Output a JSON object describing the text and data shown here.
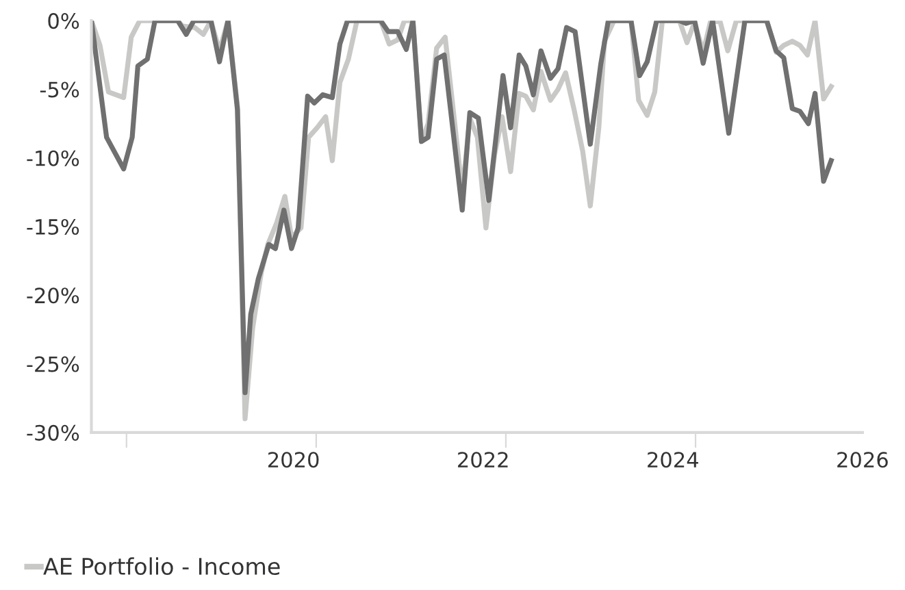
{
  "chart_data": {
    "type": "line",
    "series": [
      {
        "name": "AE Portfolio - Income",
        "color": "#c8c8c6",
        "x": [
          2017.87,
          2017.96,
          2018.05,
          2018.21,
          2018.29,
          2018.38,
          2018.78,
          2018.83,
          2018.96,
          2019.05,
          2019.13,
          2019.22,
          2019.31,
          2019.41,
          2019.49,
          2019.57,
          2019.66,
          2019.73,
          2019.82,
          2019.91,
          2019.98,
          2020.08,
          2020.16,
          2020.25,
          2020.34,
          2020.41,
          2020.49,
          2020.58,
          2020.67,
          2020.92,
          2021.01,
          2021.1,
          2021.17,
          2021.26,
          2021.35,
          2021.42,
          2021.51,
          2021.6,
          2021.69,
          2021.78,
          2021.86,
          2021.94,
          2022.03,
          2022.12,
          2022.2,
          2022.29,
          2022.38,
          2022.45,
          2022.53,
          2022.61,
          2022.71,
          2022.79,
          2022.87,
          2022.96,
          2023.05,
          2023.13,
          2023.22,
          2023.28,
          2023.38,
          2023.56,
          2023.64,
          2023.73,
          2023.81,
          2023.89,
          2024.07,
          2024.15,
          2024.23,
          2024.32,
          2024.4,
          2024.5,
          2024.58,
          2024.67,
          2024.99,
          2025.09,
          2025.17,
          2025.26,
          2025.34,
          2025.42,
          2025.5,
          2025.59,
          2025.67
        ],
        "values": [
          0,
          -1.8,
          -5.2,
          -5.6,
          -1.2,
          0,
          0,
          -0.4,
          -0.5,
          -1.0,
          0,
          -2.2,
          0,
          -6.2,
          -29.0,
          -22.4,
          -18.4,
          -16.3,
          -14.8,
          -12.8,
          -15.8,
          -15.1,
          -8.5,
          -7.8,
          -7.0,
          -10.2,
          -4.5,
          -2.8,
          0,
          0,
          -1.7,
          -1.4,
          0,
          0,
          -8.8,
          -7.5,
          -2.0,
          -1.2,
          -6.8,
          -12.5,
          -7.1,
          -8.5,
          -15.1,
          -9.8,
          -7.0,
          -11.0,
          -5.3,
          -5.5,
          -6.5,
          -3.7,
          -5.8,
          -5.0,
          -3.8,
          -6.5,
          -9.5,
          -13.5,
          -7.8,
          -1.5,
          0,
          0,
          -5.8,
          -6.9,
          -5.2,
          0,
          0,
          -1.6,
          -0.1,
          -2.3,
          0,
          -0.1,
          -2.2,
          0,
          0,
          -2.3,
          -1.8,
          -1.5,
          -1.8,
          -2.5,
          0,
          -5.7,
          -4.8
        ]
      },
      {
        "color": "#707070",
        "x": [
          2017.87,
          2018.03,
          2018.21,
          2018.3,
          2018.36,
          2018.46,
          2018.54,
          2018.78,
          2018.87,
          2018.95,
          2019.13,
          2019.22,
          2019.31,
          2019.41,
          2019.49,
          2019.55,
          2019.63,
          2019.74,
          2019.81,
          2019.9,
          2019.98,
          2020.05,
          2020.15,
          2020.22,
          2020.31,
          2020.41,
          2020.49,
          2020.57,
          2020.92,
          2021.0,
          2021.1,
          2021.19,
          2021.26,
          2021.35,
          2021.42,
          2021.51,
          2021.59,
          2021.78,
          2021.86,
          2021.95,
          2022.06,
          2022.21,
          2022.29,
          2022.38,
          2022.45,
          2022.53,
          2022.61,
          2022.71,
          2022.79,
          2022.88,
          2022.97,
          2023.13,
          2023.24,
          2023.32,
          2023.56,
          2023.65,
          2023.73,
          2023.83,
          2024.07,
          2024.14,
          2024.23,
          2024.32,
          2024.42,
          2024.59,
          2024.76,
          2024.99,
          2025.09,
          2025.17,
          2025.26,
          2025.34,
          2025.43,
          2025.5,
          2025.59,
          2025.67
        ],
        "values": [
          0,
          -8.5,
          -10.8,
          -8.5,
          -3.3,
          -2.8,
          0,
          0,
          -1.0,
          0,
          0,
          -3.0,
          0,
          -6.5,
          -27.1,
          -21.4,
          -18.8,
          -16.3,
          -16.6,
          -13.8,
          -16.6,
          -15.1,
          -5.5,
          -6.0,
          -5.4,
          -5.6,
          -1.7,
          0,
          0,
          -0.8,
          -0.8,
          -2.1,
          0,
          -8.8,
          -8.5,
          -2.8,
          -2.5,
          -13.8,
          -6.7,
          -7.1,
          -13.1,
          -4.0,
          -7.8,
          -2.5,
          -3.3,
          -5.4,
          -2.2,
          -4.2,
          -3.5,
          -0.5,
          -0.8,
          -9.0,
          -3.2,
          0,
          0,
          -4.0,
          -3.0,
          0,
          0,
          -0.2,
          0,
          -3.1,
          0,
          -8.2,
          0,
          0,
          -2.2,
          -2.7,
          -6.4,
          -6.6,
          -7.5,
          -5.3,
          -11.7,
          -10.2
        ]
      }
    ],
    "xlim": [
      2017.87,
      2026
    ],
    "xticks": [
      {
        "value": 2018.24,
        "label": null
      },
      2020,
      {
        "value": 2020.24,
        "label": null
      },
      2022,
      {
        "value": 2022.24,
        "label": null
      },
      2024,
      {
        "value": 2024.24,
        "label": null
      },
      2026
    ],
    "ylim": [
      -30,
      0
    ],
    "yticks": [
      {
        "value": 0,
        "label": "0%"
      },
      {
        "value": -5,
        "label": "-5%"
      },
      {
        "value": -10,
        "label": "-10%"
      },
      {
        "value": -15,
        "label": "-15%"
      },
      {
        "value": -20,
        "label": "-20%"
      },
      {
        "value": -25,
        "label": "-25%"
      },
      {
        "value": -30,
        "label": "-30%"
      }
    ],
    "grid": false,
    "legend": "bottom",
    "marker": "none",
    "line_style": "solid"
  }
}
